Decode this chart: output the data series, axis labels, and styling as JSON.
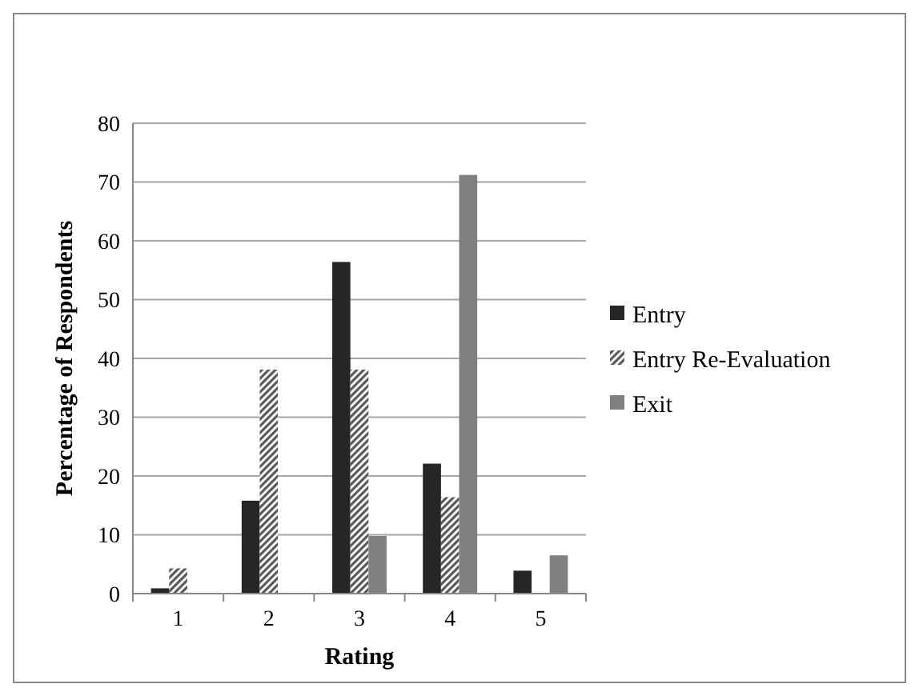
{
  "chart_data": {
    "type": "bar",
    "xlabel": "Rating",
    "ylabel": "Percentage of Respondents",
    "categories": [
      "1",
      "2",
      "3",
      "4",
      "5"
    ],
    "series": [
      {
        "name": "Entry",
        "color": "#262626",
        "values": [
          0.9,
          15.8,
          56.4,
          22.1,
          3.9
        ]
      },
      {
        "name": "Entry Re-Evaluation",
        "color": "#595959",
        "values": [
          4.3,
          38.1,
          38.1,
          16.4,
          0
        ]
      },
      {
        "name": "Exit",
        "color": "#808080",
        "values": [
          0,
          0,
          9.8,
          71.2,
          6.5
        ]
      }
    ],
    "ylim": [
      0,
      80
    ],
    "yticks": [
      0,
      10,
      20,
      30,
      40,
      50,
      60,
      70,
      80
    ],
    "grid": "y",
    "legend": "right"
  }
}
